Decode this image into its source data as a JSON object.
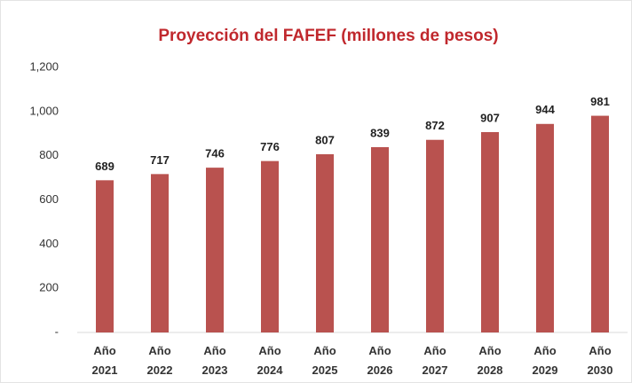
{
  "chart_data": {
    "type": "bar",
    "title": "Proyección del FAFEF (millones de pesos)",
    "categories": [
      "Año 2021",
      "Año 2022",
      "Año 2023",
      "Año 2024",
      "Año 2025",
      "Año 2026",
      "Año 2027",
      "Año 2028",
      "Año 2029",
      "Año 2030"
    ],
    "values": [
      689,
      717,
      746,
      776,
      807,
      839,
      872,
      907,
      944,
      981
    ],
    "color": "#b9524f",
    "ylim": [
      0,
      1200
    ],
    "yticks": [
      {
        "value": 0,
        "label": "-"
      },
      200,
      400,
      600,
      800,
      {
        "value": 1000,
        "label": "1,000"
      },
      {
        "value": 1200,
        "label": "1,200"
      }
    ],
    "grid": false
  }
}
